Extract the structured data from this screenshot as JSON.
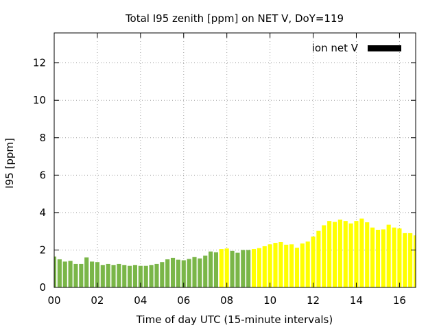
{
  "chart_data": {
    "type": "bar",
    "title": "Total I95 zenith [ppm] on NET V, DoY=119",
    "xlabel": "Time of day UTC (15-minute intervals)",
    "ylabel": "I95 [ppm]",
    "legend": {
      "label": "ion net V",
      "position": "top-right",
      "swatch_color": "#000000"
    },
    "xlim": [
      0,
      16.75
    ],
    "ylim": [
      0,
      13.6
    ],
    "x_ticks": [
      {
        "value": 0,
        "label": "00"
      },
      {
        "value": 2,
        "label": "02"
      },
      {
        "value": 4,
        "label": "04"
      },
      {
        "value": 6,
        "label": "06"
      },
      {
        "value": 8,
        "label": "08"
      },
      {
        "value": 10,
        "label": "10"
      },
      {
        "value": 12,
        "label": "12"
      },
      {
        "value": 14,
        "label": "14"
      },
      {
        "value": 16,
        "label": "16"
      }
    ],
    "y_ticks": [
      {
        "value": 0,
        "label": "0"
      },
      {
        "value": 2,
        "label": "2"
      },
      {
        "value": 4,
        "label": "4"
      },
      {
        "value": 6,
        "label": "6"
      },
      {
        "value": 8,
        "label": "8"
      },
      {
        "value": 10,
        "label": "10"
      },
      {
        "value": 12,
        "label": "12"
      }
    ],
    "grid": true,
    "bar_interval_hours": 0.25,
    "colors": {
      "green": "#7ab648",
      "yellow": "#ffff00"
    },
    "bars": [
      {
        "x": 0.0,
        "value": 1.65,
        "color": "green"
      },
      {
        "x": 0.25,
        "value": 1.5,
        "color": "green"
      },
      {
        "x": 0.5,
        "value": 1.38,
        "color": "green"
      },
      {
        "x": 0.75,
        "value": 1.42,
        "color": "green"
      },
      {
        "x": 1.0,
        "value": 1.25,
        "color": "green"
      },
      {
        "x": 1.25,
        "value": 1.25,
        "color": "green"
      },
      {
        "x": 1.5,
        "value": 1.6,
        "color": "green"
      },
      {
        "x": 1.75,
        "value": 1.38,
        "color": "green"
      },
      {
        "x": 2.0,
        "value": 1.35,
        "color": "green"
      },
      {
        "x": 2.25,
        "value": 1.2,
        "color": "green"
      },
      {
        "x": 2.5,
        "value": 1.25,
        "color": "green"
      },
      {
        "x": 2.75,
        "value": 1.2,
        "color": "green"
      },
      {
        "x": 3.0,
        "value": 1.25,
        "color": "green"
      },
      {
        "x": 3.25,
        "value": 1.2,
        "color": "green"
      },
      {
        "x": 3.5,
        "value": 1.15,
        "color": "green"
      },
      {
        "x": 3.75,
        "value": 1.2,
        "color": "green"
      },
      {
        "x": 4.0,
        "value": 1.15,
        "color": "green"
      },
      {
        "x": 4.25,
        "value": 1.15,
        "color": "green"
      },
      {
        "x": 4.5,
        "value": 1.2,
        "color": "green"
      },
      {
        "x": 4.75,
        "value": 1.25,
        "color": "green"
      },
      {
        "x": 5.0,
        "value": 1.35,
        "color": "green"
      },
      {
        "x": 5.25,
        "value": 1.5,
        "color": "green"
      },
      {
        "x": 5.5,
        "value": 1.58,
        "color": "green"
      },
      {
        "x": 5.75,
        "value": 1.48,
        "color": "green"
      },
      {
        "x": 6.0,
        "value": 1.45,
        "color": "green"
      },
      {
        "x": 6.25,
        "value": 1.52,
        "color": "green"
      },
      {
        "x": 6.5,
        "value": 1.62,
        "color": "green"
      },
      {
        "x": 6.75,
        "value": 1.55,
        "color": "green"
      },
      {
        "x": 7.0,
        "value": 1.7,
        "color": "green"
      },
      {
        "x": 7.25,
        "value": 1.92,
        "color": "green"
      },
      {
        "x": 7.5,
        "value": 1.88,
        "color": "green"
      },
      {
        "x": 7.75,
        "value": 2.05,
        "color": "yellow"
      },
      {
        "x": 8.0,
        "value": 2.08,
        "color": "yellow"
      },
      {
        "x": 8.25,
        "value": 1.95,
        "color": "green"
      },
      {
        "x": 8.5,
        "value": 1.85,
        "color": "green"
      },
      {
        "x": 8.75,
        "value": 2.0,
        "color": "green"
      },
      {
        "x": 9.0,
        "value": 2.0,
        "color": "green"
      },
      {
        "x": 9.25,
        "value": 2.05,
        "color": "yellow"
      },
      {
        "x": 9.5,
        "value": 2.1,
        "color": "yellow"
      },
      {
        "x": 9.75,
        "value": 2.2,
        "color": "yellow"
      },
      {
        "x": 10.0,
        "value": 2.3,
        "color": "yellow"
      },
      {
        "x": 10.25,
        "value": 2.38,
        "color": "yellow"
      },
      {
        "x": 10.5,
        "value": 2.42,
        "color": "yellow"
      },
      {
        "x": 10.75,
        "value": 2.28,
        "color": "yellow"
      },
      {
        "x": 11.0,
        "value": 2.3,
        "color": "yellow"
      },
      {
        "x": 11.25,
        "value": 2.12,
        "color": "yellow"
      },
      {
        "x": 11.5,
        "value": 2.35,
        "color": "yellow"
      },
      {
        "x": 11.75,
        "value": 2.45,
        "color": "yellow"
      },
      {
        "x": 12.0,
        "value": 2.72,
        "color": "yellow"
      },
      {
        "x": 12.25,
        "value": 3.02,
        "color": "yellow"
      },
      {
        "x": 12.5,
        "value": 3.32,
        "color": "yellow"
      },
      {
        "x": 12.75,
        "value": 3.55,
        "color": "yellow"
      },
      {
        "x": 13.0,
        "value": 3.5,
        "color": "yellow"
      },
      {
        "x": 13.25,
        "value": 3.62,
        "color": "yellow"
      },
      {
        "x": 13.5,
        "value": 3.55,
        "color": "yellow"
      },
      {
        "x": 13.75,
        "value": 3.42,
        "color": "yellow"
      },
      {
        "x": 14.0,
        "value": 3.55,
        "color": "yellow"
      },
      {
        "x": 14.25,
        "value": 3.68,
        "color": "yellow"
      },
      {
        "x": 14.5,
        "value": 3.48,
        "color": "yellow"
      },
      {
        "x": 14.75,
        "value": 3.2,
        "color": "yellow"
      },
      {
        "x": 15.0,
        "value": 3.08,
        "color": "yellow"
      },
      {
        "x": 15.25,
        "value": 3.1,
        "color": "yellow"
      },
      {
        "x": 15.5,
        "value": 3.35,
        "color": "yellow"
      },
      {
        "x": 15.75,
        "value": 3.2,
        "color": "yellow"
      },
      {
        "x": 16.0,
        "value": 3.15,
        "color": "yellow"
      },
      {
        "x": 16.25,
        "value": 2.9,
        "color": "yellow"
      },
      {
        "x": 16.5,
        "value": 2.9,
        "color": "yellow"
      },
      {
        "x": 16.75,
        "value": 2.78,
        "color": "yellow"
      }
    ]
  }
}
